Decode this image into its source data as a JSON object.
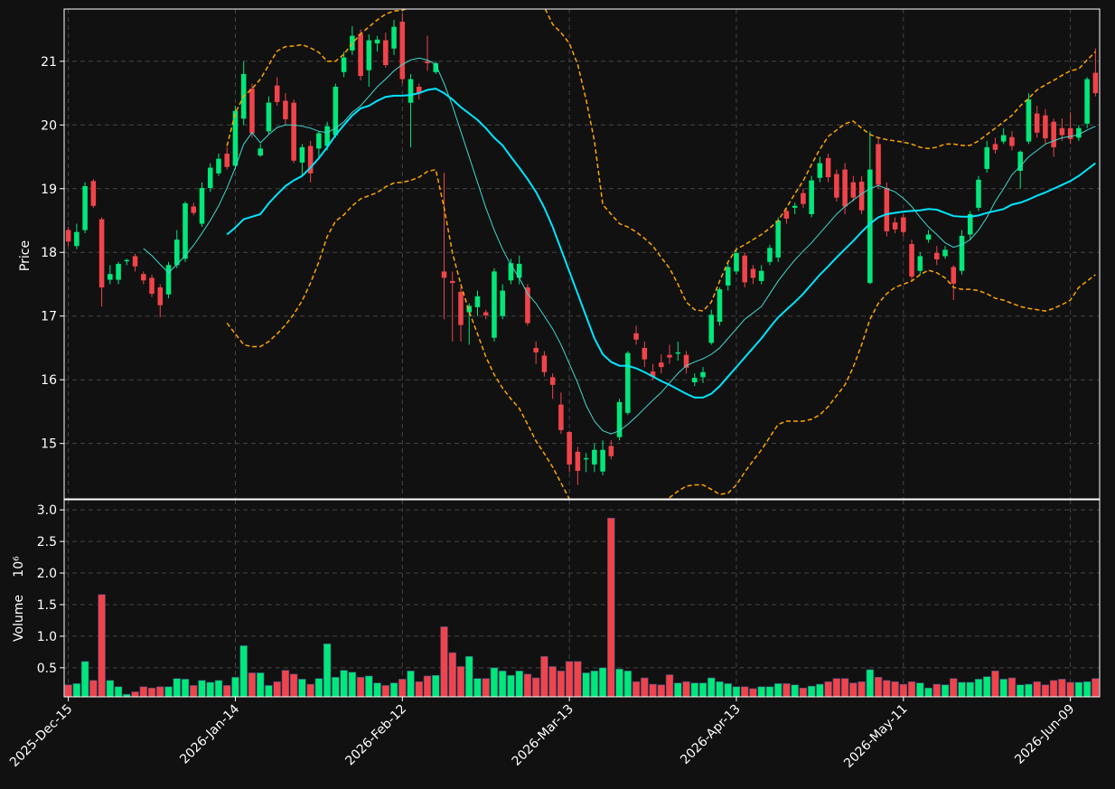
{
  "chart_data": {
    "type": "candlestick",
    "ylabel": "Price",
    "volume_ylabel": "Volume",
    "volume_offset": "10⁶",
    "up_color": "#00e87a",
    "down_color": "#f0444a",
    "grid": true,
    "ylim": [
      14.13,
      21.82
    ],
    "yticks": [
      15,
      16,
      17,
      18,
      19,
      20,
      21
    ],
    "volume_ylim": [
      0.04,
      3.16
    ],
    "volume_yticks": [
      0.5,
      {
        "value": 1,
        "label": "1.0"
      },
      1.5,
      {
        "value": 2,
        "label": "2.0"
      },
      2.5,
      {
        "value": 3,
        "label": "3.0"
      }
    ],
    "categories": [
      "2025-Dec-15",
      null,
      null,
      null,
      null,
      null,
      null,
      null,
      null,
      null,
      null,
      null,
      null,
      null,
      null,
      null,
      null,
      null,
      null,
      null,
      "2026-Jan-14",
      null,
      null,
      null,
      null,
      null,
      null,
      null,
      null,
      null,
      null,
      null,
      null,
      null,
      null,
      null,
      null,
      null,
      null,
      null,
      "2026-Feb-12",
      null,
      null,
      null,
      null,
      null,
      null,
      null,
      null,
      null,
      null,
      null,
      null,
      null,
      null,
      null,
      null,
      null,
      null,
      null,
      "2026-Mar-13",
      null,
      null,
      null,
      null,
      null,
      null,
      null,
      null,
      null,
      null,
      null,
      null,
      null,
      null,
      null,
      null,
      null,
      null,
      null,
      "2026-Apr-13",
      null,
      null,
      null,
      null,
      null,
      null,
      null,
      null,
      null,
      null,
      null,
      null,
      null,
      null,
      null,
      null,
      null,
      null,
      null,
      "2026-May-11",
      null,
      null,
      null,
      null,
      null,
      null,
      null,
      null,
      null,
      null,
      null,
      null,
      null,
      null,
      null,
      null,
      null,
      null,
      null,
      "2026-Jun-09",
      null,
      null,
      null
    ],
    "open": [
      18.35,
      18.1,
      18.35,
      19.12,
      18.52,
      17.57,
      17.57,
      17.86,
      17.94,
      17.66,
      17.6,
      17.45,
      17.34,
      17.8,
      17.9,
      18.72,
      18.45,
      19.01,
      19.24,
      19.55,
      19.36,
      20.1,
      20.57,
      19.52,
      19.9,
      20.62,
      20.38,
      20.35,
      19.41,
      19.67,
      19.63,
      19.67,
      19.84,
      20.83,
      21.17,
      21.43,
      20.86,
      21.28,
      21.33,
      21.2,
      21.62,
      20.35,
      20.6,
      21.0,
      20.83,
      17.7,
      17.55,
      17.38,
      17.06,
      17.14,
      17.06,
      16.66,
      17.0,
      17.56,
      17.6,
      17.45,
      16.5,
      16.38,
      16.04,
      15.61,
      15.18,
      14.87,
      14.75,
      14.67,
      14.56,
      14.96,
      15.1,
      15.48,
      16.73,
      16.5,
      16.13,
      16.27,
      16.39,
      16.41,
      16.39,
      15.96,
      16.04,
      16.58,
      16.91,
      17.48,
      17.7,
      17.95,
      17.74,
      17.55,
      17.85,
      17.92,
      18.65,
      18.7,
      18.93,
      18.6,
      19.17,
      19.48,
      19.23,
      19.3,
      19.1,
      19.11,
      17.52,
      19.7,
      19.01,
      18.47,
      18.55,
      18.13,
      17.71,
      18.2,
      17.99,
      17.94,
      17.77,
      17.71,
      18.28,
      18.7,
      19.31,
      19.7,
      19.74,
      19.81,
      19.28,
      19.74,
      20.18,
      20.15,
      20.05,
      19.95,
      19.95,
      19.8,
      20.02,
      20.82
    ],
    "high": [
      18.4,
      18.45,
      19.1,
      19.15,
      18.55,
      17.8,
      17.85,
      17.9,
      17.98,
      17.7,
      17.65,
      17.5,
      17.85,
      18.35,
      18.8,
      18.78,
      19.1,
      19.4,
      19.55,
      19.65,
      20.3,
      21.0,
      20.65,
      19.7,
      20.45,
      20.75,
      20.5,
      20.4,
      19.7,
      19.75,
      19.9,
      20.05,
      20.65,
      21.15,
      21.55,
      21.5,
      21.42,
      21.4,
      21.45,
      21.65,
      21.75,
      20.8,
      20.65,
      21.4,
      21.0,
      19.25,
      17.7,
      17.45,
      17.2,
      17.4,
      17.1,
      17.75,
      17.5,
      17.9,
      17.95,
      17.5,
      16.6,
      16.45,
      16.1,
      15.8,
      15.2,
      14.95,
      14.85,
      15.0,
      15.05,
      15.05,
      15.7,
      16.45,
      16.85,
      16.6,
      16.25,
      16.4,
      16.55,
      16.6,
      16.45,
      16.1,
      16.2,
      17.1,
      17.45,
      17.85,
      18.05,
      18.0,
      17.8,
      17.8,
      18.12,
      18.55,
      18.7,
      18.78,
      19.0,
      19.2,
      19.5,
      19.55,
      19.3,
      19.4,
      19.2,
      19.2,
      19.9,
      19.8,
      19.1,
      18.55,
      18.6,
      18.2,
      18.0,
      18.35,
      18.1,
      18.1,
      17.8,
      18.35,
      18.65,
      19.2,
      19.75,
      19.8,
      19.95,
      19.9,
      19.6,
      20.5,
      20.3,
      20.25,
      20.1,
      20.1,
      20.2,
      20.0,
      20.75,
      21.2
    ],
    "low": [
      18.1,
      18.05,
      18.3,
      18.7,
      17.15,
      17.5,
      17.5,
      17.8,
      17.7,
      17.5,
      17.3,
      16.98,
      17.28,
      17.75,
      17.85,
      18.58,
      18.4,
      18.95,
      19.2,
      19.3,
      19.3,
      20.0,
      19.8,
      19.5,
      19.85,
      20.3,
      20.0,
      19.4,
      19.2,
      19.1,
      19.5,
      19.6,
      19.8,
      20.75,
      21.1,
      20.7,
      20.6,
      21.15,
      20.9,
      21.1,
      20.65,
      19.65,
      20.4,
      20.85,
      20.8,
      16.95,
      16.6,
      16.6,
      16.55,
      17.0,
      16.95,
      16.6,
      16.95,
      17.5,
      17.5,
      16.85,
      16.25,
      16.05,
      15.7,
      15.15,
      14.55,
      14.35,
      14.55,
      14.55,
      14.5,
      14.75,
      15.05,
      15.45,
      16.55,
      16.2,
      16.0,
      16.1,
      16.25,
      16.3,
      16.1,
      15.9,
      15.95,
      16.55,
      16.85,
      17.4,
      17.65,
      17.45,
      17.5,
      17.5,
      17.8,
      17.85,
      18.45,
      18.6,
      18.7,
      18.55,
      19.1,
      19.1,
      18.8,
      18.6,
      18.8,
      18.6,
      17.5,
      19.0,
      18.25,
      18.3,
      18.25,
      17.55,
      17.65,
      18.15,
      17.8,
      17.9,
      17.25,
      17.65,
      18.2,
      18.65,
      19.25,
      19.55,
      19.7,
      19.6,
      19.0,
      19.7,
      19.8,
      19.7,
      19.5,
      19.75,
      19.7,
      19.75,
      19.95,
      20.45
    ],
    "close": [
      18.17,
      18.32,
      19.04,
      18.73,
      17.45,
      17.66,
      17.82,
      17.88,
      17.78,
      17.56,
      17.35,
      17.17,
      17.8,
      18.2,
      18.77,
      18.62,
      19.01,
      19.33,
      19.47,
      19.34,
      20.22,
      20.8,
      19.87,
      19.63,
      20.35,
      20.36,
      20.09,
      19.44,
      19.65,
      19.24,
      19.87,
      19.98,
      20.6,
      21.06,
      21.4,
      20.77,
      21.33,
      21.34,
      20.94,
      21.54,
      20.72,
      20.72,
      20.5,
      20.97,
      20.97,
      17.6,
      17.52,
      16.86,
      17.16,
      17.31,
      17.01,
      17.7,
      17.4,
      17.83,
      17.82,
      16.89,
      16.43,
      16.12,
      15.92,
      15.21,
      14.67,
      14.57,
      14.77,
      14.9,
      14.9,
      14.8,
      15.65,
      16.42,
      16.63,
      16.32,
      16.05,
      16.2,
      16.35,
      16.43,
      16.19,
      16.03,
      16.12,
      17.02,
      17.42,
      17.77,
      17.99,
      17.53,
      17.6,
      17.71,
      18.07,
      18.5,
      18.53,
      18.73,
      18.76,
      19.13,
      19.4,
      19.18,
      18.86,
      18.72,
      18.86,
      18.66,
      19.3,
      19.06,
      18.33,
      18.36,
      18.32,
      17.62,
      17.94,
      18.28,
      17.89,
      18.04,
      17.51,
      18.26,
      18.6,
      19.14,
      19.65,
      19.61,
      19.84,
      19.67,
      19.58,
      20.4,
      19.88,
      19.79,
      19.65,
      19.84,
      19.78,
      19.95,
      20.72,
      20.5
    ],
    "volume": [
      0.23,
      0.25,
      0.6,
      0.3,
      1.66,
      0.3,
      0.2,
      0.08,
      0.12,
      0.2,
      0.18,
      0.2,
      0.2,
      0.33,
      0.32,
      0.22,
      0.3,
      0.27,
      0.3,
      0.22,
      0.35,
      0.85,
      0.42,
      0.42,
      0.22,
      0.28,
      0.46,
      0.4,
      0.32,
      0.24,
      0.33,
      0.88,
      0.35,
      0.46,
      0.43,
      0.35,
      0.37,
      0.26,
      0.22,
      0.26,
      0.32,
      0.45,
      0.28,
      0.37,
      0.38,
      1.15,
      0.74,
      0.52,
      0.68,
      0.33,
      0.33,
      0.5,
      0.45,
      0.38,
      0.45,
      0.4,
      0.34,
      0.68,
      0.52,
      0.45,
      0.6,
      0.6,
      0.42,
      0.45,
      0.5,
      2.87,
      0.48,
      0.45,
      0.28,
      0.34,
      0.24,
      0.23,
      0.39,
      0.26,
      0.28,
      0.26,
      0.26,
      0.34,
      0.28,
      0.25,
      0.2,
      0.2,
      0.17,
      0.2,
      0.2,
      0.25,
      0.25,
      0.23,
      0.18,
      0.21,
      0.24,
      0.28,
      0.33,
      0.33,
      0.26,
      0.28,
      0.47,
      0.35,
      0.3,
      0.28,
      0.24,
      0.28,
      0.26,
      0.18,
      0.24,
      0.23,
      0.33,
      0.27,
      0.27,
      0.32,
      0.36,
      0.45,
      0.32,
      0.34,
      0.23,
      0.24,
      0.28,
      0.23,
      0.3,
      0.32,
      0.27,
      0.27,
      0.28,
      0.33
    ],
    "overlays": [
      {
        "color": "#3fd9d0",
        "dashed": false,
        "values": [
          null,
          null,
          null,
          null,
          null,
          null,
          null,
          null,
          null,
          18.06,
          17.95,
          17.81,
          17.68,
          17.81,
          17.95,
          18.11,
          18.3,
          18.5,
          18.73,
          19.01,
          19.33,
          19.7,
          19.88,
          19.72,
          19.85,
          19.96,
          20.0,
          20.0,
          19.98,
          19.95,
          19.9,
          19.88,
          19.95,
          20.05,
          20.2,
          20.3,
          20.45,
          20.6,
          20.72,
          20.85,
          20.95,
          21.02,
          21.05,
          21.02,
          20.95,
          20.65,
          20.3,
          19.9,
          19.5,
          19.1,
          18.7,
          18.35,
          18.05,
          17.8,
          17.6,
          17.35,
          17.2,
          17.0,
          16.8,
          16.55,
          16.25,
          15.95,
          15.6,
          15.35,
          15.2,
          15.15,
          15.2,
          15.3,
          15.42,
          15.55,
          15.68,
          15.8,
          15.95,
          16.1,
          16.22,
          16.28,
          16.33,
          16.4,
          16.5,
          16.65,
          16.8,
          16.95,
          17.05,
          17.15,
          17.35,
          17.55,
          17.72,
          17.88,
          18.02,
          18.15,
          18.3,
          18.45,
          18.6,
          18.72,
          18.82,
          18.92,
          19.0,
          19.05,
          19.0,
          18.95,
          18.85,
          18.72,
          18.55,
          18.4,
          18.28,
          18.15,
          18.08,
          18.12,
          18.2,
          18.35,
          18.55,
          18.8,
          19.0,
          19.22,
          19.35,
          19.5,
          19.6,
          19.7,
          19.75,
          19.8,
          19.82,
          19.85,
          19.92,
          19.98
        ]
      },
      {
        "color": "#00e5ff",
        "dashed": false,
        "values": [
          null,
          null,
          null,
          null,
          null,
          null,
          null,
          null,
          null,
          null,
          null,
          null,
          null,
          null,
          null,
          null,
          null,
          null,
          null,
          18.28,
          18.39,
          18.52,
          18.56,
          18.6,
          18.77,
          18.91,
          19.04,
          19.13,
          19.2,
          19.33,
          19.48,
          19.65,
          19.84,
          20.0,
          20.15,
          20.26,
          20.3,
          20.38,
          20.44,
          20.46,
          20.46,
          20.47,
          20.5,
          20.55,
          20.57,
          20.5,
          20.4,
          20.28,
          20.18,
          20.08,
          19.95,
          19.8,
          19.68,
          19.5,
          19.33,
          19.15,
          18.95,
          18.7,
          18.4,
          18.05,
          17.7,
          17.35,
          17.0,
          16.65,
          16.4,
          16.28,
          16.22,
          16.22,
          16.18,
          16.12,
          16.05,
          15.98,
          15.92,
          15.85,
          15.78,
          15.72,
          15.72,
          15.78,
          15.9,
          16.05,
          16.2,
          16.35,
          16.5,
          16.65,
          16.82,
          16.98,
          17.1,
          17.22,
          17.35,
          17.5,
          17.65,
          17.78,
          17.92,
          18.05,
          18.18,
          18.32,
          18.45,
          18.55,
          18.6,
          18.62,
          18.64,
          18.65,
          18.66,
          18.68,
          18.67,
          18.62,
          18.57,
          18.56,
          18.56,
          18.58,
          18.62,
          18.65,
          18.68,
          18.75,
          18.78,
          18.83,
          18.89,
          18.94,
          19.0,
          19.06,
          19.12,
          19.2,
          19.3,
          19.4
        ]
      },
      {
        "color": "#ffa500",
        "dashed": true,
        "values": [
          null,
          null,
          null,
          null,
          null,
          null,
          null,
          null,
          null,
          null,
          null,
          null,
          null,
          null,
          null,
          null,
          null,
          null,
          null,
          19.67,
          20.19,
          20.45,
          20.57,
          20.72,
          20.94,
          21.16,
          21.23,
          21.24,
          21.26,
          21.21,
          21.14,
          21.0,
          21.0,
          21.11,
          21.28,
          21.43,
          21.54,
          21.65,
          21.74,
          21.79,
          21.8,
          21.85,
          21.95,
          22.1,
          22.3,
          22.8,
          23.2,
          23.5,
          23.6,
          23.6,
          23.5,
          23.4,
          23.2,
          23.0,
          22.8,
          22.5,
          22.2,
          21.85,
          21.58,
          21.45,
          21.28,
          20.95,
          20.4,
          19.75,
          18.75,
          18.6,
          18.45,
          18.4,
          18.32,
          18.22,
          18.1,
          17.92,
          17.75,
          17.5,
          17.22,
          17.1,
          17.08,
          17.22,
          17.55,
          17.85,
          18.05,
          18.12,
          18.2,
          18.28,
          18.38,
          18.5,
          18.7,
          18.92,
          19.12,
          19.38,
          19.62,
          19.82,
          19.92,
          20.02,
          20.06,
          19.95,
          19.85,
          19.8,
          19.77,
          19.75,
          19.73,
          19.7,
          19.65,
          19.63,
          19.65,
          19.7,
          19.7,
          19.68,
          19.68,
          19.75,
          19.85,
          19.95,
          20.05,
          20.15,
          20.3,
          20.42,
          20.55,
          20.63,
          20.7,
          20.78,
          20.85,
          20.88,
          21.02,
          21.15
        ]
      },
      {
        "color": "#ffa500",
        "dashed": true,
        "values": [
          null,
          null,
          null,
          null,
          null,
          null,
          null,
          null,
          null,
          null,
          null,
          null,
          null,
          null,
          null,
          null,
          null,
          null,
          null,
          16.89,
          16.72,
          16.55,
          16.52,
          16.52,
          16.6,
          16.72,
          16.86,
          17.03,
          17.24,
          17.52,
          17.85,
          18.25,
          18.49,
          18.59,
          18.73,
          18.84,
          18.89,
          18.94,
          19.03,
          19.09,
          19.1,
          19.13,
          19.18,
          19.27,
          19.3,
          18.7,
          17.99,
          17.5,
          17.07,
          16.72,
          16.36,
          16.08,
          15.87,
          15.7,
          15.55,
          15.3,
          15.04,
          14.84,
          14.63,
          14.38,
          14.13,
          13.9,
          13.7,
          13.6,
          13.5,
          13.45,
          13.4,
          13.45,
          13.6,
          13.8,
          13.95,
          14.05,
          14.15,
          14.25,
          14.33,
          14.35,
          14.35,
          14.28,
          14.2,
          14.22,
          14.35,
          14.55,
          14.73,
          14.9,
          15.1,
          15.3,
          15.35,
          15.35,
          15.35,
          15.38,
          15.45,
          15.58,
          15.75,
          15.92,
          16.2,
          16.55,
          16.95,
          17.2,
          17.35,
          17.45,
          17.5,
          17.55,
          17.65,
          17.72,
          17.68,
          17.6,
          17.45,
          17.42,
          17.42,
          17.4,
          17.35,
          17.28,
          17.25,
          17.2,
          17.15,
          17.12,
          17.1,
          17.08,
          17.12,
          17.18,
          17.25,
          17.45,
          17.55,
          17.65
        ]
      }
    ]
  }
}
